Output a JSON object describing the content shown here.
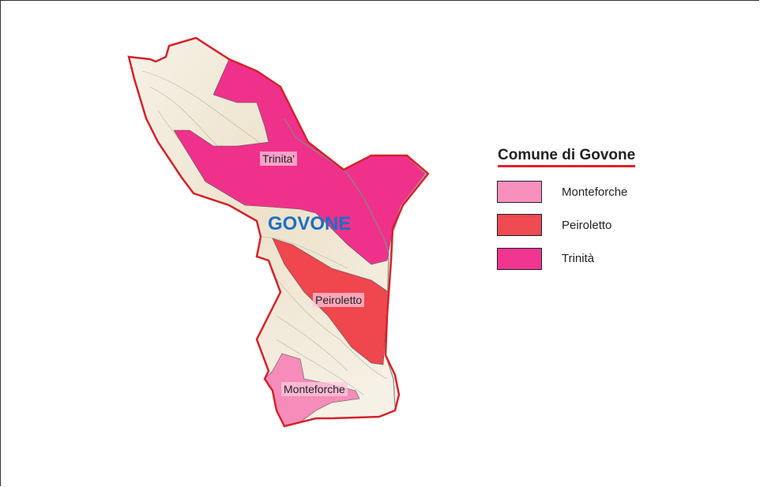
{
  "map": {
    "town_label": "GOVONE",
    "zones": [
      {
        "label": "Trinita'",
        "color": "#f0318c"
      },
      {
        "label": "Peiroletto",
        "color": "#f0464e"
      },
      {
        "label": "Monteforche",
        "color": "#f58cba"
      }
    ],
    "boundary_color": "#d4212a",
    "base_color": "#f4ede0"
  },
  "legend": {
    "title": "Comune di Govone",
    "items": [
      {
        "label": "Monteforche",
        "color": "#f790bd"
      },
      {
        "label": "Peiroletto",
        "color": "#f04a52"
      },
      {
        "label": "Trinità",
        "color": "#f03691"
      }
    ]
  }
}
